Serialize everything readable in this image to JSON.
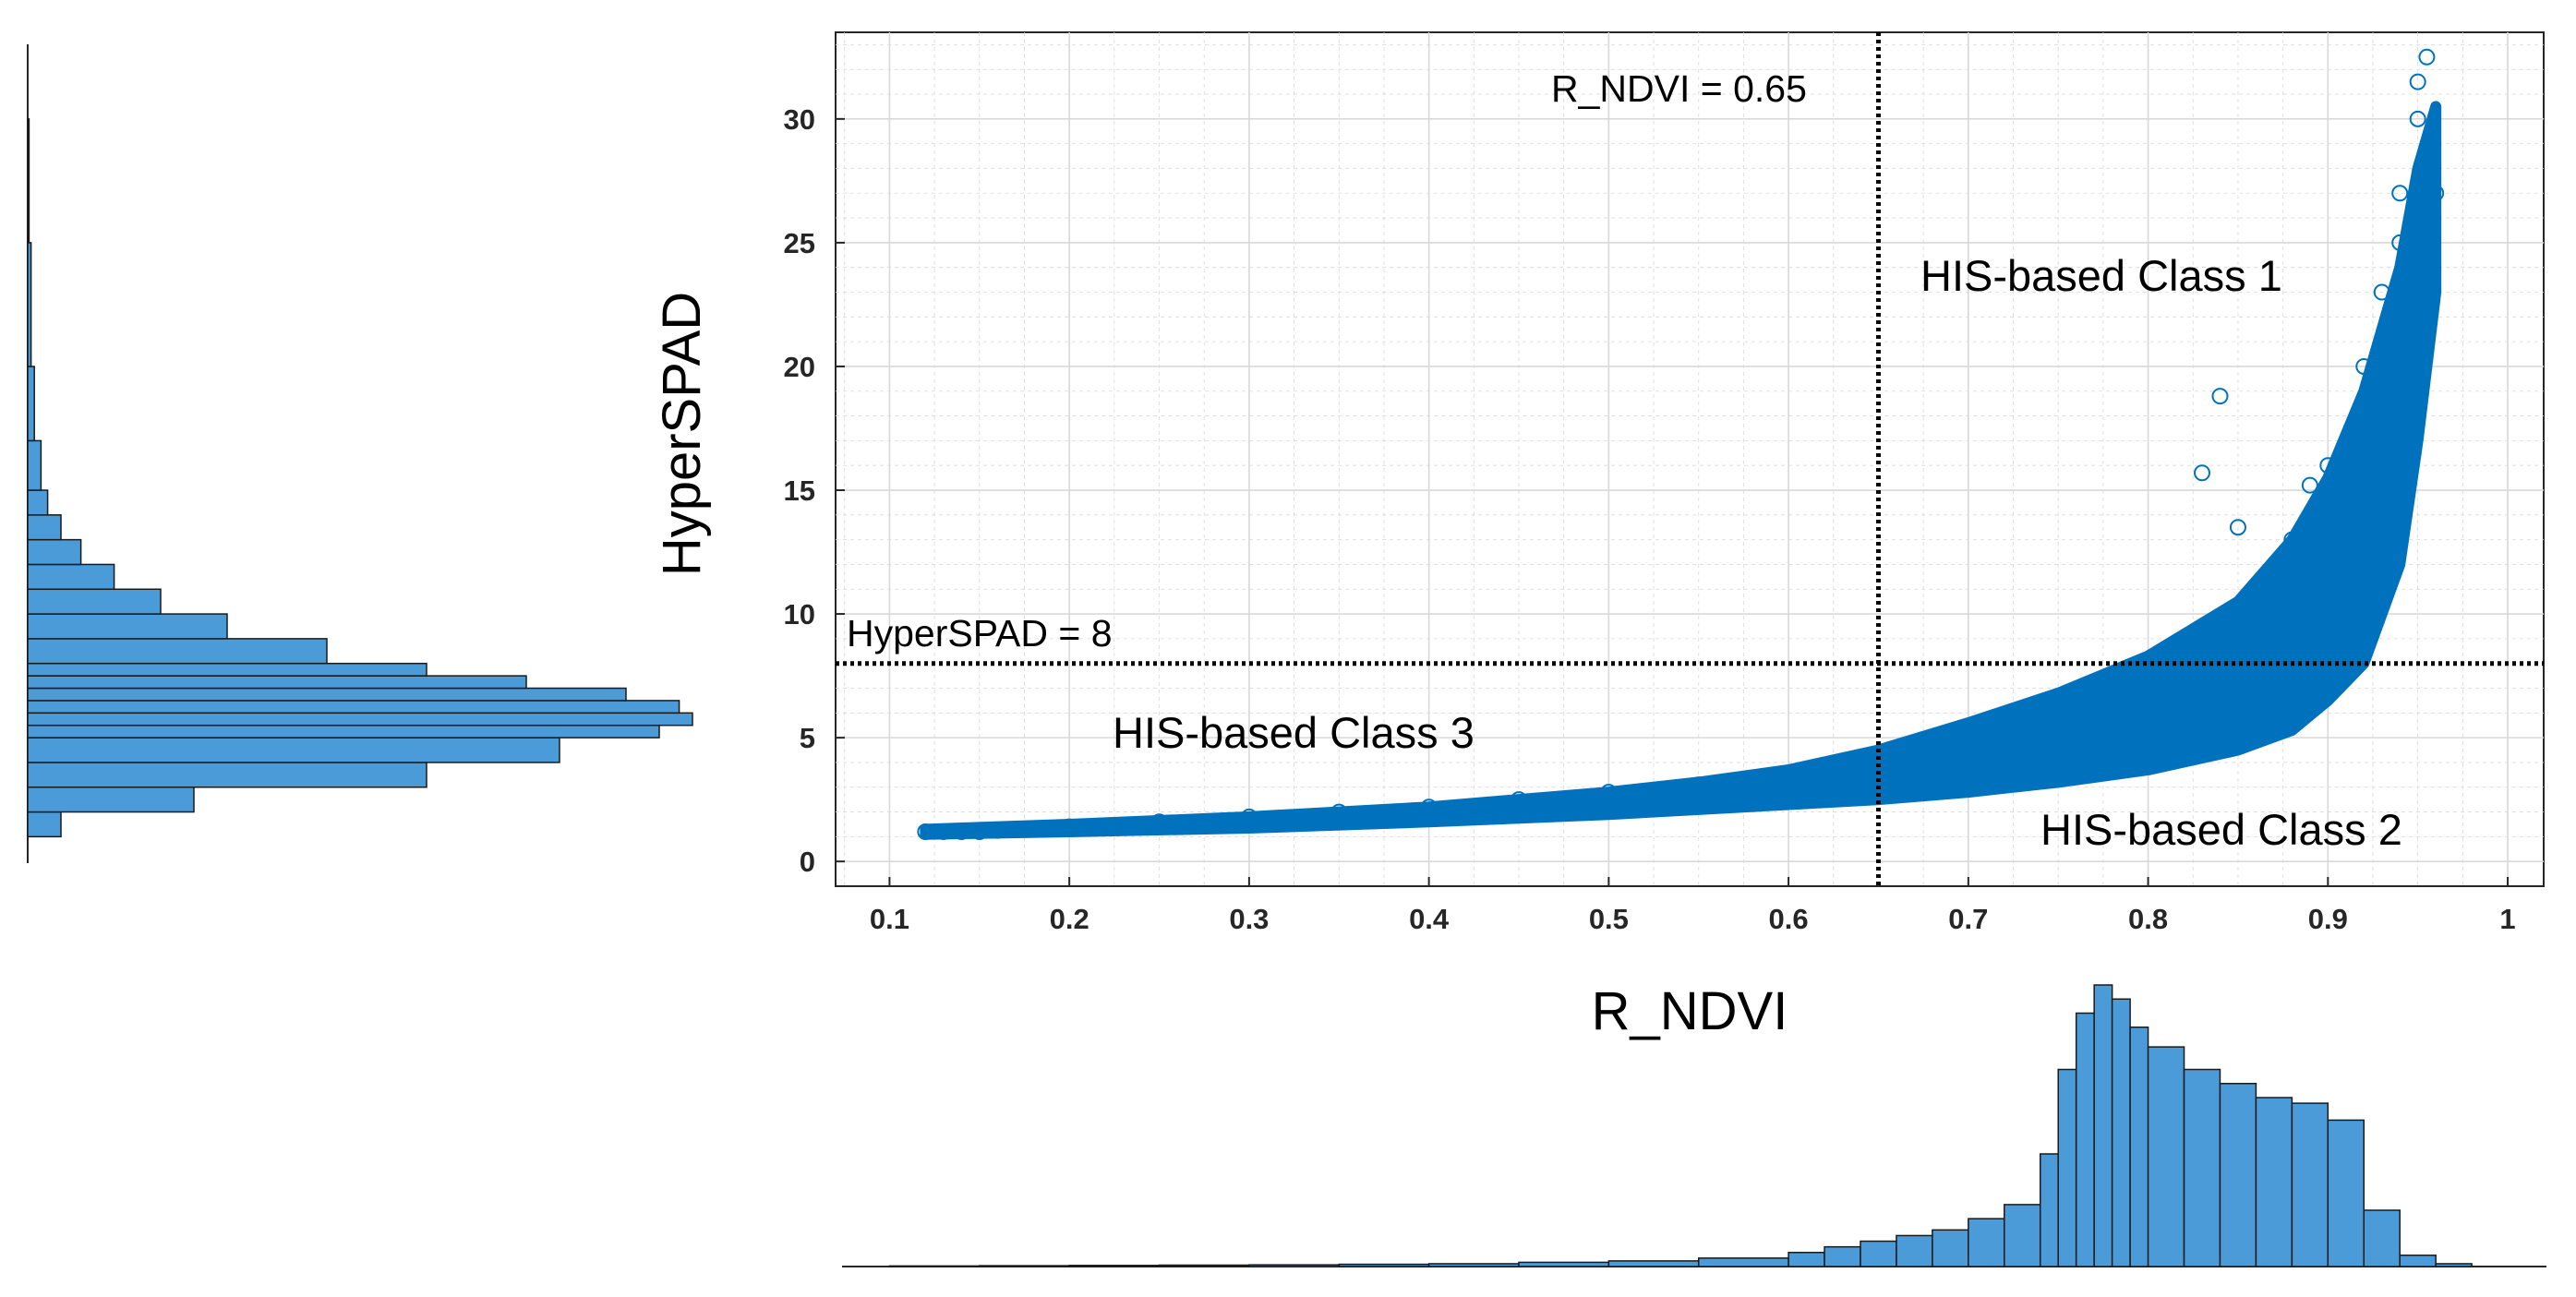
{
  "chart_data": {
    "type": "scatter",
    "xlabel": "R_NDVI",
    "ylabel": "HyperSPAD",
    "xlim": [
      0.07,
      1.02
    ],
    "ylim": [
      -1,
      33.5
    ],
    "x_ticks": [
      "0.1",
      "0.2",
      "0.3",
      "0.4",
      "0.5",
      "0.6",
      "0.7",
      "0.8",
      "0.9",
      "1"
    ],
    "y_ticks": [
      "0",
      "5",
      "10",
      "15",
      "20",
      "25",
      "30"
    ],
    "grid": true,
    "series": [
      {
        "name": "pixels",
        "marker": "circle-open",
        "color": "#0072BD",
        "x": [
          0.12,
          0.13,
          0.14,
          0.15,
          0.16,
          0.17,
          0.18,
          0.19,
          0.2,
          0.25,
          0.3,
          0.35,
          0.4,
          0.45,
          0.5,
          0.55,
          0.6,
          0.65,
          0.7,
          0.75,
          0.8,
          0.84,
          0.88,
          0.9,
          0.92,
          0.93,
          0.94,
          0.95,
          0.96,
          0.955,
          0.95,
          0.94,
          0.93,
          0.92,
          0.83,
          0.84,
          0.89,
          0.85,
          0.87
        ],
        "y": [
          1.2,
          1.2,
          1.2,
          1.2,
          1.25,
          1.3,
          1.3,
          1.35,
          1.4,
          1.6,
          1.8,
          2.0,
          2.2,
          2.5,
          2.8,
          3.1,
          3.5,
          4.2,
          5.0,
          6.0,
          7.5,
          9.5,
          13.0,
          16.0,
          20.0,
          23.0,
          27.0,
          30.0,
          27.0,
          32.5,
          31.5,
          25.0,
          20.0,
          12.0,
          15.7,
          18.8,
          15.2,
          13.5,
          11.0
        ],
        "band": {
          "x": [
            0.12,
            0.2,
            0.3,
            0.4,
            0.5,
            0.55,
            0.6,
            0.65,
            0.7,
            0.75,
            0.8,
            0.85,
            0.88,
            0.9,
            0.92,
            0.94,
            0.95,
            0.96
          ],
          "y_low": [
            1.1,
            1.2,
            1.35,
            1.6,
            1.9,
            2.1,
            2.3,
            2.5,
            2.8,
            3.2,
            3.7,
            4.5,
            5.3,
            6.5,
            8.0,
            12.0,
            17.0,
            23.0
          ],
          "y_high": [
            1.3,
            1.5,
            1.8,
            2.2,
            2.8,
            3.2,
            3.7,
            4.5,
            5.6,
            6.8,
            8.3,
            10.5,
            13.0,
            15.5,
            19.0,
            24.0,
            28.0,
            30.5
          ]
        }
      }
    ],
    "threshold_lines": [
      {
        "orientation": "vertical",
        "value": 0.65,
        "label": "R_NDVI = 0.65",
        "style": "dotted"
      },
      {
        "orientation": "horizontal",
        "value": 8,
        "label": "HyperSPAD = 8",
        "style": "dotted"
      }
    ],
    "annotations": [
      "HIS-based Class 1",
      "HIS-based Class 2",
      "HIS-based Class 3"
    ],
    "marginal_histograms": {
      "x": {
        "variable": "R_NDVI",
        "bins": [
          0.1,
          0.15,
          0.2,
          0.25,
          0.3,
          0.35,
          0.4,
          0.45,
          0.5,
          0.55,
          0.6,
          0.62,
          0.64,
          0.66,
          0.68,
          0.7,
          0.72,
          0.74,
          0.75,
          0.76,
          0.77,
          0.78,
          0.79,
          0.8,
          0.82,
          0.84,
          0.86,
          0.88,
          0.9,
          0.92,
          0.94,
          0.96,
          0.98
        ],
        "counts": [
          0.2,
          0.3,
          0.4,
          0.5,
          0.6,
          0.8,
          1,
          1.5,
          2,
          3,
          5,
          7,
          9,
          11,
          13,
          17,
          22,
          40,
          70,
          90,
          100,
          95,
          85,
          78,
          70,
          65,
          60,
          58,
          52,
          20,
          4,
          1,
          0
        ]
      },
      "y": {
        "variable": "HyperSPAD",
        "bins": [
          1,
          2,
          3,
          4,
          5,
          5.5,
          6,
          6.5,
          7,
          7.5,
          8,
          9,
          10,
          11,
          12,
          13,
          14,
          15,
          17,
          20,
          25,
          30
        ],
        "counts": [
          5,
          25,
          60,
          80,
          95,
          100,
          98,
          90,
          75,
          60,
          45,
          30,
          20,
          13,
          8,
          5,
          3,
          2,
          1,
          0.5,
          0.2,
          0.1
        ]
      }
    }
  },
  "labels": {
    "xlabel": "R_NDVI",
    "ylabel": "HyperSPAD",
    "vline_label": "R_NDVI = 0.65",
    "hline_label": "HyperSPAD = 8",
    "class1": "HIS-based Class 1",
    "class2": "HIS-based Class 2",
    "class3": "HIS-based Class 3"
  },
  "colors": {
    "marker": "#0072BD",
    "hist_fill": "#4A9BD8",
    "grid": "#D9D9D9"
  }
}
